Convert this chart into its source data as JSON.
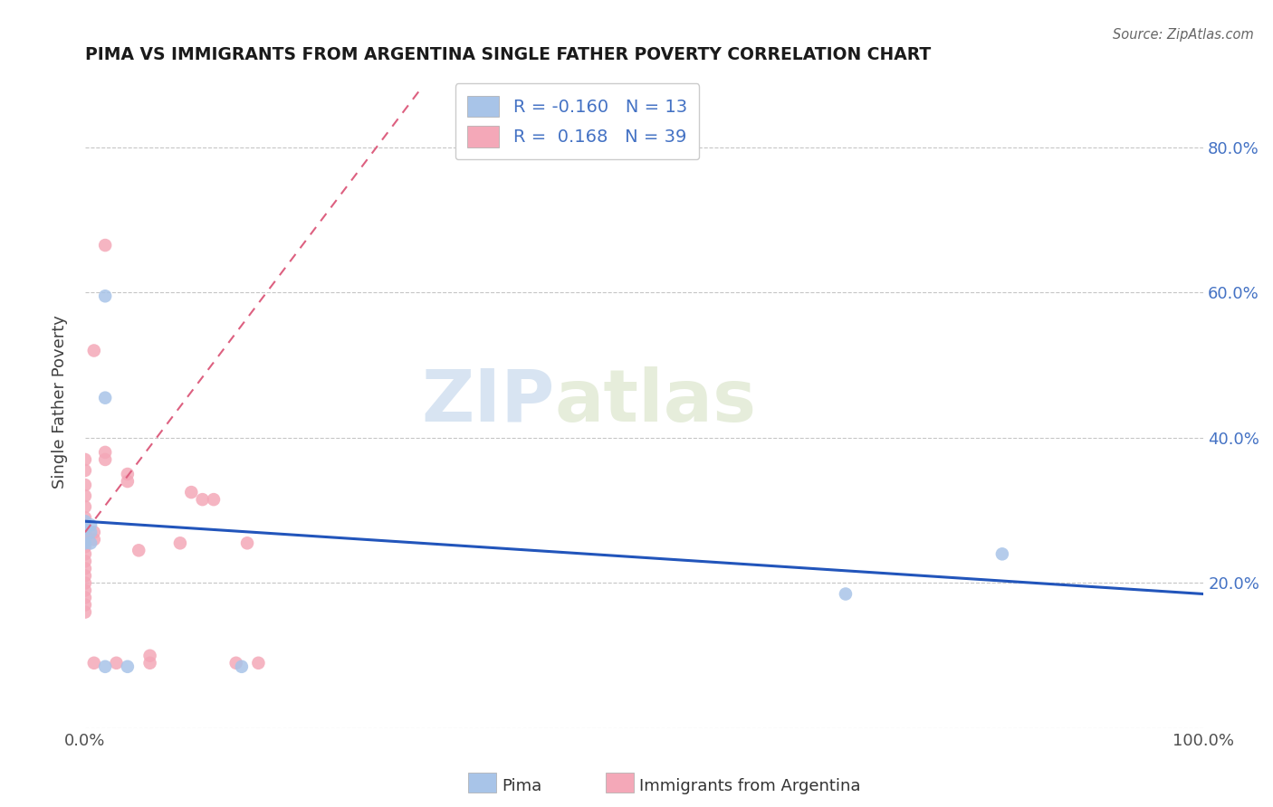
{
  "title": "PIMA VS IMMIGRANTS FROM ARGENTINA SINGLE FATHER POVERTY CORRELATION CHART",
  "source": "Source: ZipAtlas.com",
  "ylabel": "Single Father Poverty",
  "xlim": [
    0.0,
    1.0
  ],
  "ylim": [
    0.0,
    0.9
  ],
  "pima_R": -0.16,
  "pima_N": 13,
  "argentina_R": 0.168,
  "argentina_N": 39,
  "pima_color": "#a8c4e8",
  "argentina_color": "#f4a8b8",
  "pima_line_color": "#2255bb",
  "argentina_line_color": "#dd6080",
  "watermark_zip": "ZIP",
  "watermark_atlas": "atlas",
  "pima_x": [
    0.018,
    0.018,
    0.0,
    0.0,
    0.0,
    0.005,
    0.005,
    0.005,
    0.018,
    0.14,
    0.68,
    0.82,
    0.038
  ],
  "pima_y": [
    0.595,
    0.455,
    0.285,
    0.275,
    0.255,
    0.28,
    0.27,
    0.255,
    0.085,
    0.085,
    0.185,
    0.24,
    0.085
  ],
  "argentina_x": [
    0.018,
    0.008,
    0.0,
    0.0,
    0.0,
    0.0,
    0.0,
    0.0,
    0.0,
    0.0,
    0.0,
    0.0,
    0.0,
    0.0,
    0.0,
    0.0,
    0.0,
    0.0,
    0.0,
    0.0,
    0.0,
    0.008,
    0.008,
    0.008,
    0.018,
    0.018,
    0.028,
    0.038,
    0.038,
    0.048,
    0.058,
    0.058,
    0.085,
    0.095,
    0.105,
    0.115,
    0.135,
    0.145,
    0.155
  ],
  "argentina_y": [
    0.665,
    0.52,
    0.37,
    0.355,
    0.335,
    0.32,
    0.305,
    0.29,
    0.28,
    0.27,
    0.26,
    0.25,
    0.24,
    0.23,
    0.22,
    0.21,
    0.2,
    0.19,
    0.18,
    0.17,
    0.16,
    0.27,
    0.26,
    0.09,
    0.38,
    0.37,
    0.09,
    0.35,
    0.34,
    0.245,
    0.1,
    0.09,
    0.255,
    0.325,
    0.315,
    0.315,
    0.09,
    0.255,
    0.09
  ],
  "pima_line_x0": 0.0,
  "pima_line_y0": 0.285,
  "pima_line_x1": 1.0,
  "pima_line_y1": 0.185,
  "argentina_line_x0": 0.0,
  "argentina_line_y0": 0.27,
  "argentina_line_x1": 0.3,
  "argentina_line_y1": 0.88
}
